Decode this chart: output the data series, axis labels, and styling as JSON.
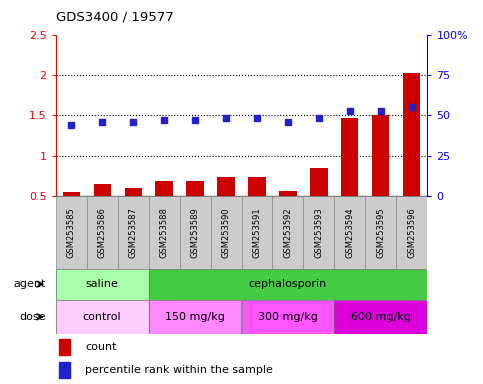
{
  "title": "GDS3400 / 19577",
  "samples": [
    "GSM253585",
    "GSM253586",
    "GSM253587",
    "GSM253588",
    "GSM253589",
    "GSM253590",
    "GSM253591",
    "GSM253592",
    "GSM253593",
    "GSM253594",
    "GSM253595",
    "GSM253596"
  ],
  "counts": [
    0.55,
    0.65,
    0.6,
    0.68,
    0.68,
    0.73,
    0.73,
    0.56,
    0.85,
    1.47,
    1.5,
    2.02
  ],
  "percentiles": [
    44,
    46,
    45.5,
    47,
    47,
    48.5,
    48.5,
    45.5,
    48.5,
    52.5,
    52.5,
    55
  ],
  "bar_color": "#cc0000",
  "dot_color": "#2222cc",
  "ylim_left": [
    0.5,
    2.5
  ],
  "ylim_right": [
    0,
    100
  ],
  "yticks_left": [
    0.5,
    1.0,
    1.5,
    2.0,
    2.5
  ],
  "ytick_labels_left": [
    "0.5",
    "1",
    "1.5",
    "2",
    "2.5"
  ],
  "yticks_right": [
    0,
    25,
    50,
    75,
    100
  ],
  "ytick_labels_right": [
    "0",
    "25",
    "50",
    "75",
    "100%"
  ],
  "agent_groups": [
    {
      "label": "saline",
      "start": 0,
      "end": 3,
      "color": "#aaffaa"
    },
    {
      "label": "cephalosporin",
      "start": 3,
      "end": 12,
      "color": "#44cc44"
    }
  ],
  "dose_groups": [
    {
      "label": "control",
      "start": 0,
      "end": 3,
      "color": "#ffccff"
    },
    {
      "label": "150 mg/kg",
      "start": 3,
      "end": 6,
      "color": "#ff88ff"
    },
    {
      "label": "300 mg/kg",
      "start": 6,
      "end": 9,
      "color": "#ff55ff"
    },
    {
      "label": "600 mg/kg",
      "start": 9,
      "end": 12,
      "color": "#dd00dd"
    }
  ],
  "legend_count_label": "count",
  "legend_pct_label": "percentile rank within the sample",
  "agent_label": "agent",
  "dose_label": "dose",
  "bg_color": "#ffffff",
  "sample_bg": "#cccccc",
  "grid_yticks": [
    1.0,
    1.5,
    2.0
  ]
}
